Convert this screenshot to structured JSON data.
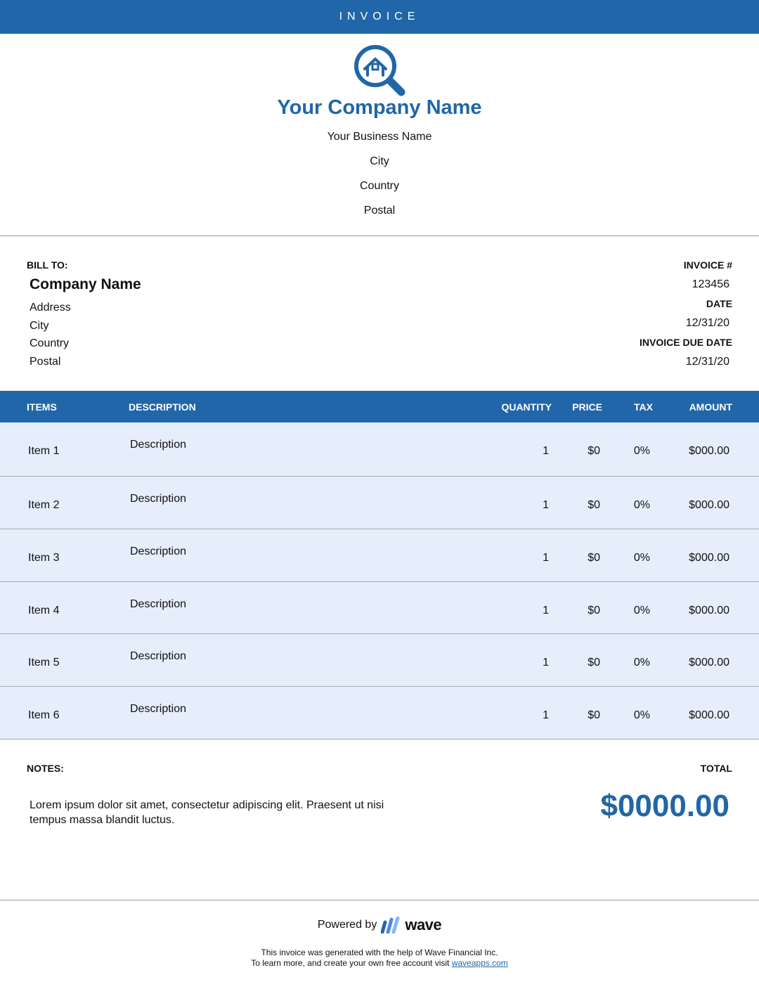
{
  "header": {
    "title": "INVOICE"
  },
  "company": {
    "name": "Your Company Name",
    "business": "Your Business Name",
    "city": "City",
    "country": "Country",
    "postal": "Postal",
    "logo": "house-magnifier-icon",
    "color": "#2166a8"
  },
  "bill_to": {
    "label": "BILL TO:",
    "name": "Company Name",
    "address": "Address",
    "city": "City",
    "country": "Country",
    "postal": "Postal"
  },
  "invoice": {
    "number_label": "INVOICE #",
    "number": "123456",
    "date_label": "DATE",
    "date": "12/31/20",
    "due_label": "INVOICE DUE DATE",
    "due": "12/31/20"
  },
  "table": {
    "headers": {
      "items": "ITEMS",
      "description": "DESCRIPTION",
      "quantity": "QUANTITY",
      "price": "PRICE",
      "tax": "TAX",
      "amount": "AMOUNT"
    },
    "rows": [
      {
        "item": "Item 1",
        "description": "Description",
        "quantity": "1",
        "price": "$0",
        "tax": "0%",
        "amount": "$000.00"
      },
      {
        "item": "Item 2",
        "description": "Description",
        "quantity": "1",
        "price": "$0",
        "tax": "0%",
        "amount": "$000.00"
      },
      {
        "item": "Item 3",
        "description": "Description",
        "quantity": "1",
        "price": "$0",
        "tax": "0%",
        "amount": "$000.00"
      },
      {
        "item": "Item 4",
        "description": "Description",
        "quantity": "1",
        "price": "$0",
        "tax": "0%",
        "amount": "$000.00"
      },
      {
        "item": "Item 5",
        "description": "Description",
        "quantity": "1",
        "price": "$0",
        "tax": "0%",
        "amount": "$000.00"
      },
      {
        "item": "Item 6",
        "description": "Description",
        "quantity": "1",
        "price": "$0",
        "tax": "0%",
        "amount": "$000.00"
      }
    ]
  },
  "notes": {
    "label": "NOTES:",
    "text": "Lorem ipsum dolor sit amet, consectetur adipiscing elit. Praesent ut nisi tempus massa blandit luctus."
  },
  "total": {
    "label": "TOTAL",
    "value": "$0000.00"
  },
  "footer": {
    "powered": "Powered by",
    "brand": "wave",
    "line1": "This invoice was generated with the help of Wave Financial Inc.",
    "line2": "To learn more, and create your own free account visit",
    "link": "waveapps.com"
  }
}
